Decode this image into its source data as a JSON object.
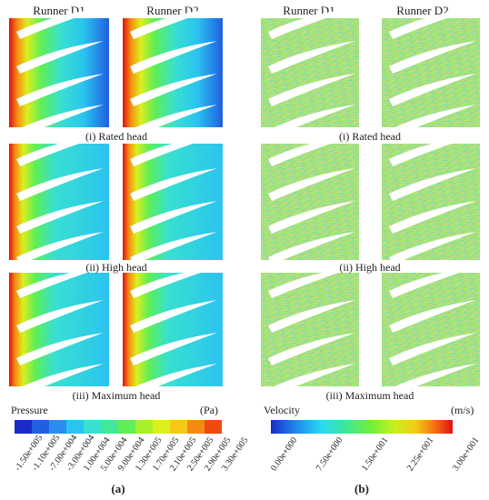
{
  "column_headers": {
    "a_left": "Runner D1",
    "a_right": "Runner D2",
    "b_left": "Runner D1",
    "b_right": "Runner D2"
  },
  "rows": [
    {
      "caption": "(i) Rated head"
    },
    {
      "caption": "(ii) High head"
    },
    {
      "caption": "(iii) Maximum head"
    }
  ],
  "pressure_legend": {
    "title": "Pressure",
    "unit": "(Pa)",
    "ticks": [
      "-1.50e+005",
      "-1.10e+005",
      "-7.00e+004",
      "-3.00e+004",
      "1.00e+004",
      "5.00e+004",
      "9.00e+004",
      "1.30e+005",
      "1.70e+005",
      "2.10e+005",
      "2.50e+005",
      "2.90e+005",
      "3.30e+005"
    ],
    "colors": [
      "#1a2cc8",
      "#1f5fe0",
      "#2a8ef0",
      "#2bc3f0",
      "#38e0d0",
      "#41e89a",
      "#5fee55",
      "#a6f02a",
      "#dcef1e",
      "#f5c818",
      "#f58a12",
      "#ef4a10",
      "#e01010"
    ]
  },
  "velocity_legend": {
    "title": "Velocity",
    "unit": "(m/s)",
    "ticks": [
      "0.00e+000",
      "7.50e+000",
      "1.50e+001",
      "2.25e+001",
      "3.00e+001"
    ]
  },
  "subfigure_labels": {
    "a": "(a)",
    "b": "(b)"
  }
}
